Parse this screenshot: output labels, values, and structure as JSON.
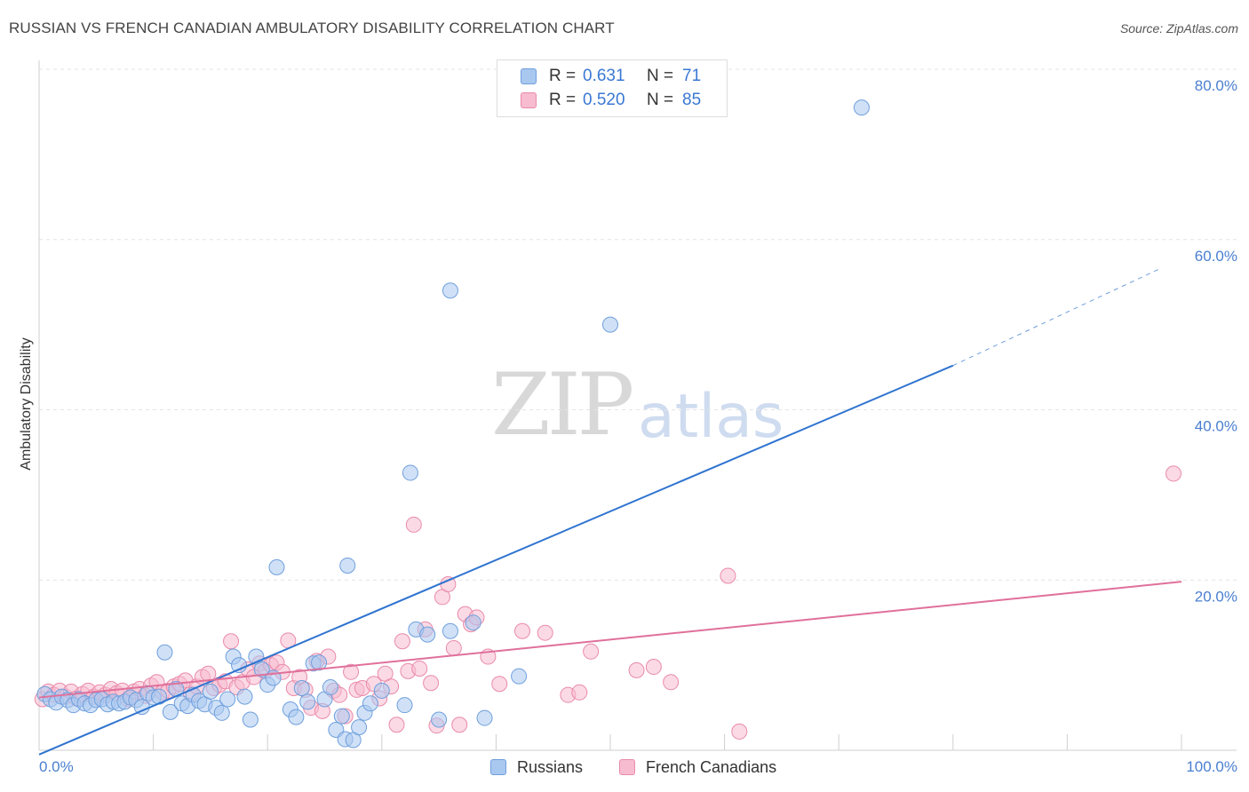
{
  "title": "RUSSIAN VS FRENCH CANADIAN AMBULATORY DISABILITY CORRELATION CHART",
  "source": "Source: ZipAtlas.com",
  "watermark": {
    "zip": "ZIP",
    "atlas": "atlas"
  },
  "legend": {
    "rows": [
      {
        "r_label": "R =",
        "r_value": "0.631",
        "n_label": "N =",
        "n_value": "71",
        "color": "#a9c8f0"
      },
      {
        "r_label": "R =",
        "r_value": "0.520",
        "n_label": "N =",
        "n_value": "85",
        "color": "#f7bcd0"
      }
    ]
  },
  "bottom_legend": {
    "russians": "Russians",
    "french_canadians": "French Canadians"
  },
  "colors": {
    "russians_fill": "#a9c8f0",
    "russians_stroke": "#6f9fdc",
    "russians_line": "#2f74d0",
    "french_fill": "#f7bcd0",
    "french_stroke": "#e98aaa",
    "french_line": "#e0709a",
    "axis_text": "#4a7fd0"
  },
  "chart_data": {
    "type": "scatter",
    "title": "RUSSIAN VS FRENCH CANADIAN AMBULATORY DISABILITY CORRELATION CHART",
    "xlabel": "",
    "ylabel": "Ambulatory Disability",
    "xlim": [
      0,
      100
    ],
    "ylim": [
      0,
      80
    ],
    "x_tick_labels": [
      "0.0%",
      "100.0%"
    ],
    "y_ticks": [
      20,
      40,
      60,
      80
    ],
    "y_tick_labels": [
      "20.0%",
      "40.0%",
      "60.0%",
      "80.0%"
    ],
    "grid": true,
    "series": [
      {
        "name": "Russians",
        "R": 0.631,
        "N": 71,
        "trend": {
          "x0": 0,
          "y0": -0.5,
          "x1": 80,
          "y1": 45.2,
          "dashed_to_x": 98,
          "dashed_to_y": 56.5
        },
        "points": [
          [
            0.5,
            6.6
          ],
          [
            1,
            6.0
          ],
          [
            1.5,
            5.6
          ],
          [
            2,
            6.3
          ],
          [
            2.5,
            5.9
          ],
          [
            3,
            5.3
          ],
          [
            3.5,
            6.0
          ],
          [
            4,
            5.5
          ],
          [
            4.5,
            5.3
          ],
          [
            5,
            5.9
          ],
          [
            5.5,
            6.0
          ],
          [
            6,
            5.4
          ],
          [
            6.5,
            5.7
          ],
          [
            7,
            5.5
          ],
          [
            7.5,
            5.7
          ],
          [
            8,
            6.2
          ],
          [
            8.5,
            5.9
          ],
          [
            9,
            5.1
          ],
          [
            9.5,
            6.7
          ],
          [
            10,
            6.2
          ],
          [
            10.5,
            6.3
          ],
          [
            11,
            11.5
          ],
          [
            11.5,
            4.5
          ],
          [
            12,
            7.2
          ],
          [
            12.5,
            5.5
          ],
          [
            13,
            5.2
          ],
          [
            13.5,
            6.5
          ],
          [
            14,
            5.8
          ],
          [
            14.5,
            5.4
          ],
          [
            15,
            6.9
          ],
          [
            15.5,
            5.0
          ],
          [
            16,
            4.4
          ],
          [
            16.5,
            6.0
          ],
          [
            17,
            11.0
          ],
          [
            17.5,
            10.0
          ],
          [
            18,
            6.3
          ],
          [
            18.5,
            3.6
          ],
          [
            19,
            11.0
          ],
          [
            19.5,
            9.5
          ],
          [
            20,
            7.7
          ],
          [
            20.5,
            8.5
          ],
          [
            20.8,
            21.5
          ],
          [
            22,
            4.8
          ],
          [
            22.5,
            3.9
          ],
          [
            23,
            7.3
          ],
          [
            23.5,
            5.7
          ],
          [
            24,
            10.2
          ],
          [
            24.5,
            10.3
          ],
          [
            25,
            6.0
          ],
          [
            25.5,
            7.4
          ],
          [
            26,
            2.4
          ],
          [
            26.5,
            4.0
          ],
          [
            26.8,
            1.3
          ],
          [
            27,
            21.7
          ],
          [
            27.5,
            1.2
          ],
          [
            28,
            2.7
          ],
          [
            28.5,
            4.4
          ],
          [
            29,
            5.5
          ],
          [
            30,
            7.0
          ],
          [
            32,
            5.3
          ],
          [
            32.5,
            32.6
          ],
          [
            33,
            14.2
          ],
          [
            34,
            13.6
          ],
          [
            35,
            3.6
          ],
          [
            36,
            14.0
          ],
          [
            36,
            54.0
          ],
          [
            38,
            15.0
          ],
          [
            39,
            3.8
          ],
          [
            42,
            8.7
          ],
          [
            50,
            50.0
          ],
          [
            72,
            75.5
          ]
        ]
      },
      {
        "name": "French Canadians",
        "R": 0.52,
        "N": 85,
        "trend": {
          "x0": 0,
          "y0": 6.2,
          "x1": 100,
          "y1": 19.8
        },
        "points": [
          [
            0.3,
            6.0
          ],
          [
            0.8,
            6.9
          ],
          [
            1.3,
            6.5
          ],
          [
            1.8,
            7.0
          ],
          [
            2.3,
            6.3
          ],
          [
            2.8,
            6.9
          ],
          [
            3.3,
            6.1
          ],
          [
            3.8,
            6.6
          ],
          [
            4.3,
            7.0
          ],
          [
            4.8,
            6.3
          ],
          [
            5.3,
            6.8
          ],
          [
            5.8,
            6.5
          ],
          [
            6.3,
            7.2
          ],
          [
            6.8,
            6.7
          ],
          [
            7.3,
            7.0
          ],
          [
            7.8,
            6.0
          ],
          [
            8.3,
            6.9
          ],
          [
            8.8,
            7.2
          ],
          [
            9.3,
            6.4
          ],
          [
            9.8,
            7.6
          ],
          [
            10.3,
            8.0
          ],
          [
            10.8,
            6.8
          ],
          [
            11.3,
            7.0
          ],
          [
            11.8,
            7.5
          ],
          [
            12.3,
            7.8
          ],
          [
            12.8,
            8.2
          ],
          [
            13.3,
            6.6
          ],
          [
            13.8,
            7.5
          ],
          [
            14.3,
            8.6
          ],
          [
            14.8,
            9.0
          ],
          [
            15.3,
            7.3
          ],
          [
            15.8,
            7.7
          ],
          [
            16.3,
            8.1
          ],
          [
            16.8,
            12.8
          ],
          [
            17.3,
            7.4
          ],
          [
            17.8,
            8.0
          ],
          [
            18.3,
            9.5
          ],
          [
            18.8,
            8.6
          ],
          [
            19.3,
            10.2
          ],
          [
            19.8,
            9.3
          ],
          [
            20.3,
            10.0
          ],
          [
            20.8,
            10.3
          ],
          [
            21.3,
            9.2
          ],
          [
            21.8,
            12.9
          ],
          [
            22.3,
            7.3
          ],
          [
            22.8,
            8.6
          ],
          [
            23.3,
            7.1
          ],
          [
            23.8,
            5.0
          ],
          [
            24.3,
            10.5
          ],
          [
            24.8,
            4.6
          ],
          [
            25.3,
            11.0
          ],
          [
            25.8,
            7.0
          ],
          [
            26.3,
            6.5
          ],
          [
            26.8,
            4.0
          ],
          [
            27.3,
            9.2
          ],
          [
            27.8,
            7.1
          ],
          [
            28.3,
            7.3
          ],
          [
            29.3,
            7.8
          ],
          [
            29.8,
            6.1
          ],
          [
            30.3,
            9.0
          ],
          [
            30.8,
            7.5
          ],
          [
            31.3,
            3.0
          ],
          [
            31.8,
            12.8
          ],
          [
            32.3,
            9.3
          ],
          [
            32.8,
            26.5
          ],
          [
            33.3,
            9.6
          ],
          [
            33.8,
            14.2
          ],
          [
            34.3,
            7.9
          ],
          [
            34.8,
            2.9
          ],
          [
            35.3,
            18.0
          ],
          [
            35.8,
            19.5
          ],
          [
            36.3,
            12.0
          ],
          [
            36.8,
            3.0
          ],
          [
            37.3,
            16.0
          ],
          [
            37.8,
            14.8
          ],
          [
            38.3,
            15.6
          ],
          [
            39.3,
            11.0
          ],
          [
            40.3,
            7.8
          ],
          [
            42.3,
            14.0
          ],
          [
            44.3,
            13.8
          ],
          [
            46.3,
            6.5
          ],
          [
            48.3,
            11.6
          ],
          [
            52.3,
            9.4
          ],
          [
            55.3,
            8.0
          ],
          [
            60.3,
            20.5
          ],
          [
            61.3,
            2.2
          ],
          [
            99.3,
            32.5
          ],
          [
            47.3,
            6.8
          ],
          [
            53.8,
            9.8
          ]
        ]
      }
    ]
  }
}
